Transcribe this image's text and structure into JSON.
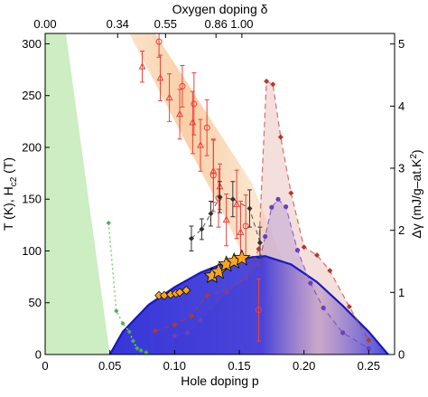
{
  "chart_data": {
    "type": "scatter",
    "xlabel": "Hole doping p",
    "ylabel_left": "T (K), H",
    "ylabel_left_sub": "c2",
    "ylabel_left_tail": " (T)",
    "ylabel_right": "Δγ (mJ/g–at.K",
    "ylabel_right_sup": "2",
    "ylabel_right_tail": ")",
    "xlabel_top": "Oxygen doping δ",
    "xlim": [
      0,
      0.27
    ],
    "ylim_left": [
      0,
      310
    ],
    "ylim_right": [
      0,
      5.17
    ],
    "x_ticks": [
      0,
      0.05,
      0.1,
      0.15,
      0.2,
      0.25
    ],
    "x_tick_labels": [
      "0",
      "0.05",
      "0.10",
      "0.15",
      "0.20",
      "0.25"
    ],
    "y_ticks": [
      0,
      50,
      100,
      150,
      200,
      250,
      300
    ],
    "y_tick_labels": [
      "0",
      "50",
      "100",
      "150",
      "200",
      "250",
      "300"
    ],
    "y_right_ticks": [
      0,
      1,
      2,
      3,
      4,
      5
    ],
    "y_right_tick_labels": [
      "0",
      "1",
      "2",
      "3",
      "4",
      "5"
    ],
    "top_ticks_p": [
      0.0,
      0.056,
      0.093,
      0.132,
      0.152
    ],
    "top_tick_labels": [
      "0.00",
      "0.34",
      "0.55",
      "0.86",
      "1.00"
    ],
    "colors": {
      "sc_dome": "#2b2bd6",
      "pseudogap_band": "#f7c08a",
      "afm": "#b8e6a8",
      "pg_points": "#e8413c",
      "hc2_points": "#333333",
      "gamma_red": "#c0392b",
      "gamma_purple": "#6a3fc0",
      "star": "#f5a623",
      "diamond": "#f5a623"
    },
    "series": [
      {
        "name": "pg_triangles",
        "marker": "triangle-open",
        "points": [
          [
            0.075,
            278,
            15
          ],
          [
            0.089,
            267,
            22
          ],
          [
            0.096,
            248,
            23
          ],
          [
            0.104,
            232,
            24
          ],
          [
            0.114,
            224,
            30
          ],
          [
            0.12,
            202,
            25
          ],
          [
            0.13,
            177,
            30
          ],
          [
            0.135,
            162,
            22
          ],
          [
            0.148,
            145,
            33
          ],
          [
            0.151,
            118,
            30
          ],
          [
            0.14,
            130,
            25
          ]
        ]
      },
      {
        "name": "pg_circles",
        "marker": "circle-open",
        "points": [
          [
            0.088,
            302,
            15
          ],
          [
            0.106,
            259,
            20
          ],
          [
            0.115,
            242,
            30
          ],
          [
            0.125,
            219,
            27
          ],
          [
            0.13,
            173,
            35
          ],
          [
            0.134,
            151,
            28
          ],
          [
            0.155,
            124,
            30
          ],
          [
            0.165,
            43,
            30
          ]
        ]
      },
      {
        "name": "hc2",
        "marker": "diamond-filled",
        "points": [
          [
            0.113,
            112,
            12
          ],
          [
            0.121,
            121,
            10
          ],
          [
            0.128,
            136,
            12
          ],
          [
            0.135,
            152,
            15
          ],
          [
            0.145,
            150,
            17
          ],
          [
            0.158,
            141,
            18
          ],
          [
            0.166,
            108,
            15
          ]
        ]
      },
      {
        "name": "gamma_red",
        "axis": "right",
        "marker": "diamond-filled",
        "points": [
          [
            0.085,
            0.38
          ],
          [
            0.1,
            0.48
          ],
          [
            0.113,
            0.62
          ],
          [
            0.125,
            0.95
          ],
          [
            0.14,
            1.02
          ],
          [
            0.155,
            1.23
          ],
          [
            0.165,
            1.7
          ],
          [
            0.171,
            4.4
          ],
          [
            0.176,
            4.35
          ],
          [
            0.182,
            3.5
          ],
          [
            0.19,
            2.6
          ],
          [
            0.2,
            1.73
          ],
          [
            0.21,
            1.6
          ],
          [
            0.22,
            1.35
          ],
          [
            0.235,
            0.77
          ],
          [
            0.25,
            0.23
          ]
        ]
      },
      {
        "name": "gamma_purple",
        "axis": "right",
        "marker": "circle-filled",
        "points": [
          [
            0.1,
            0.3
          ],
          [
            0.11,
            0.35
          ],
          [
            0.12,
            0.55
          ],
          [
            0.14,
            1.0
          ],
          [
            0.155,
            1.23
          ],
          [
            0.165,
            1.45
          ],
          [
            0.17,
            1.9
          ],
          [
            0.175,
            2.37
          ],
          [
            0.18,
            2.5
          ],
          [
            0.186,
            2.38
          ],
          [
            0.195,
            1.68
          ],
          [
            0.205,
            1.15
          ],
          [
            0.215,
            0.75
          ],
          [
            0.23,
            0.35
          ],
          [
            0.25,
            0.1
          ]
        ]
      },
      {
        "name": "tc_stars",
        "marker": "star",
        "points": [
          [
            0.129,
            76
          ],
          [
            0.134,
            80
          ],
          [
            0.14,
            87
          ],
          [
            0.146,
            90
          ],
          [
            0.152,
            93
          ]
        ]
      },
      {
        "name": "tc_diamonds",
        "marker": "diamond",
        "points": [
          [
            0.088,
            57
          ],
          [
            0.092,
            57
          ],
          [
            0.097,
            58
          ],
          [
            0.101,
            59
          ],
          [
            0.104,
            60
          ],
          [
            0.109,
            62
          ]
        ]
      },
      {
        "name": "afm_green",
        "marker": "diamond-filled-small",
        "points": [
          [
            0.049,
            127
          ],
          [
            0.055,
            42
          ],
          [
            0.06,
            30
          ],
          [
            0.065,
            22
          ],
          [
            0.068,
            13
          ],
          [
            0.071,
            6
          ],
          [
            0.074,
            4
          ],
          [
            0.078,
            2
          ]
        ]
      }
    ],
    "sc_dome_curve": [
      [
        0.05,
        0
      ],
      [
        0.06,
        22
      ],
      [
        0.08,
        48
      ],
      [
        0.1,
        65
      ],
      [
        0.12,
        79
      ],
      [
        0.14,
        89
      ],
      [
        0.16,
        94
      ],
      [
        0.17,
        95
      ],
      [
        0.19,
        87
      ],
      [
        0.21,
        70
      ],
      [
        0.23,
        47
      ],
      [
        0.25,
        22
      ],
      [
        0.265,
        0
      ]
    ],
    "pseudogap_band_upper": [
      [
        0.035,
        310
      ],
      [
        0.085,
        310
      ],
      [
        0.16,
        165
      ],
      [
        0.2,
        40
      ]
    ],
    "pseudogap_band_lower": [
      [
        0.02,
        310
      ],
      [
        0.065,
        310
      ],
      [
        0.14,
        130
      ],
      [
        0.18,
        25
      ]
    ],
    "afm_region": [
      [
        0,
        310
      ],
      [
        0.016,
        310
      ],
      [
        0.05,
        0
      ],
      [
        0,
        0
      ]
    ]
  }
}
